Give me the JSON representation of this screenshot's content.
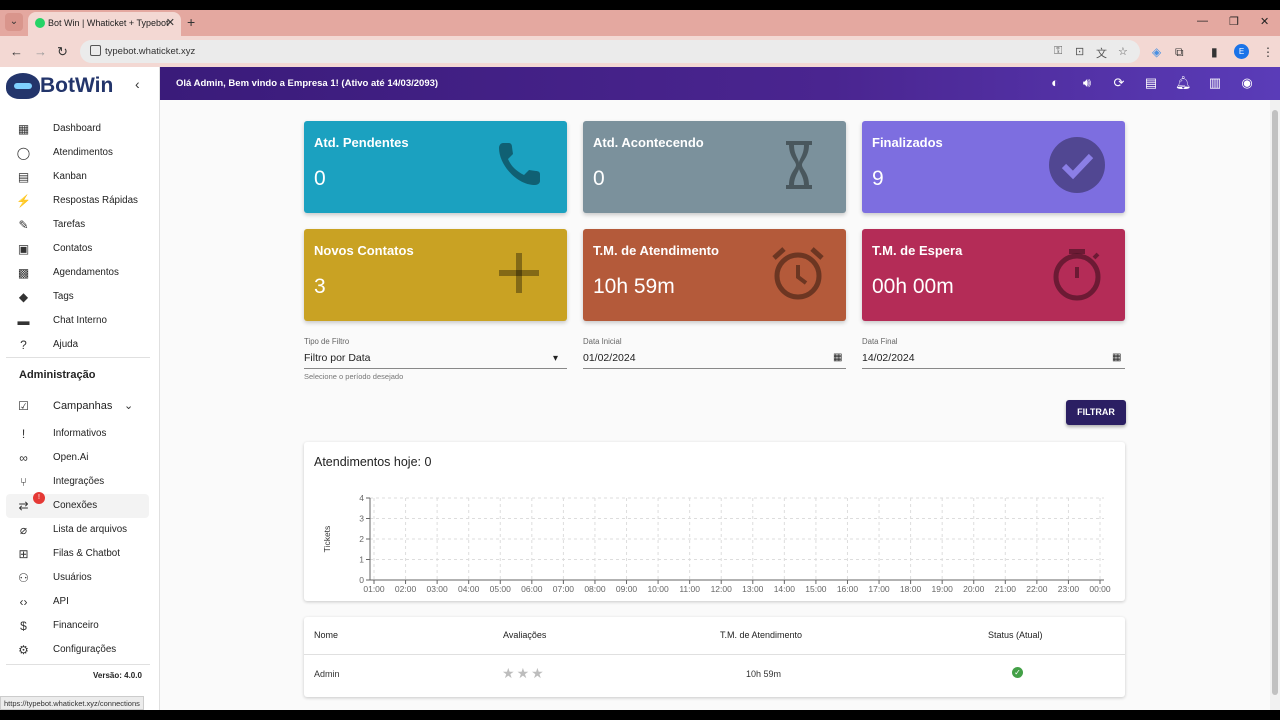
{
  "browser": {
    "tab_title": "Bot Win | Whaticket + Typebot",
    "url": "typebot.whaticket.xyz",
    "status_url": "https://typebot.whaticket.xyz/connections",
    "profile_initial": "E"
  },
  "header": {
    "greeting": "Olá Admin, Bem vindo a Empresa 1! (Ativo até 14/03/2093)",
    "icons": [
      "brightness-icon",
      "volume-icon",
      "refresh-icon",
      "chat-icon",
      "bell-icon",
      "forum-icon",
      "account-icon"
    ]
  },
  "sidebar": {
    "logo_text": "BotWin",
    "items": [
      {
        "label": "Dashboard",
        "icon": "dashboard-icon",
        "glyph": "▦"
      },
      {
        "label": "Atendimentos",
        "icon": "whatsapp-icon",
        "glyph": "◯"
      },
      {
        "label": "Kanban",
        "icon": "kanban-icon",
        "glyph": "▤"
      },
      {
        "label": "Respostas Rápidas",
        "icon": "flash-icon",
        "glyph": "⚡"
      },
      {
        "label": "Tarefas",
        "icon": "pencil-icon",
        "glyph": "✎"
      },
      {
        "label": "Contatos",
        "icon": "contacts-icon",
        "glyph": "▣"
      },
      {
        "label": "Agendamentos",
        "icon": "calendar-icon",
        "glyph": "▩"
      },
      {
        "label": "Tags",
        "icon": "tag-icon",
        "glyph": "◆"
      },
      {
        "label": "Chat Interno",
        "icon": "chat-icon",
        "glyph": "▬"
      },
      {
        "label": "Ajuda",
        "icon": "help-icon",
        "glyph": "?"
      }
    ],
    "admin_title": "Administração",
    "admin_items": [
      {
        "label": "Campanhas",
        "icon": "campaign-icon",
        "glyph": "☑"
      },
      {
        "label": "Informativos",
        "icon": "announcement-icon",
        "glyph": "!"
      },
      {
        "label": "Open.Ai",
        "icon": "infinity-icon",
        "glyph": "∞"
      },
      {
        "label": "Integrações",
        "icon": "integration-icon",
        "glyph": "⑂"
      },
      {
        "label": "Conexões",
        "icon": "sync-alt-icon",
        "glyph": "⇄",
        "badge": "!"
      },
      {
        "label": "Lista de arquivos",
        "icon": "attach-icon",
        "glyph": "⌀"
      },
      {
        "label": "Filas & Chatbot",
        "icon": "account-tree-icon",
        "glyph": "⊞"
      },
      {
        "label": "Usuários",
        "icon": "people-icon",
        "glyph": "⚇"
      },
      {
        "label": "API",
        "icon": "code-icon",
        "glyph": "‹›"
      },
      {
        "label": "Financeiro",
        "icon": "money-icon",
        "glyph": "$"
      },
      {
        "label": "Configurações",
        "icon": "settings-icon",
        "glyph": "⚙"
      }
    ],
    "version": "Versão: 4.0.0"
  },
  "cards": [
    {
      "title": "Atd. Pendentes",
      "value": "0",
      "color": "#1ba1c0",
      "icon": "phone-icon"
    },
    {
      "title": "Atd. Acontecendo",
      "value": "0",
      "color": "#7b919c",
      "icon": "hourglass-icon"
    },
    {
      "title": "Finalizados",
      "value": "9",
      "color": "#7d6ee0",
      "icon": "check-circle-icon"
    },
    {
      "title": "Novos Contatos",
      "value": "3",
      "color": "#c9a223",
      "icon": "add-icon"
    },
    {
      "title": "T.M. de Atendimento",
      "value": "10h 59m",
      "color": "#b45a3a",
      "icon": "alarm-icon"
    },
    {
      "title": "T.M. de Espera",
      "value": "00h 00m",
      "color": "#b42c57",
      "icon": "timer-icon"
    }
  ],
  "filters": {
    "type_label": "Tipo de Filtro",
    "type_value": "Filtro por Data",
    "type_helper": "Selecione o período desejado",
    "start_label": "Data Inicial",
    "start_value": "01/02/2024",
    "end_label": "Data Final",
    "end_value": "14/02/2024",
    "button_label": "FILTRAR"
  },
  "chart_data": {
    "type": "line",
    "title": "Atendimentos hoje: 0",
    "ylabel": "Tickets",
    "xlabel": "",
    "categories": [
      "01:00",
      "02:00",
      "03:00",
      "04:00",
      "05:00",
      "06:00",
      "07:00",
      "08:00",
      "09:00",
      "10:00",
      "11:00",
      "12:00",
      "13:00",
      "14:00",
      "15:00",
      "16:00",
      "17:00",
      "18:00",
      "19:00",
      "20:00",
      "21:00",
      "22:00",
      "23:00",
      "00:00"
    ],
    "values": [
      0,
      0,
      0,
      0,
      0,
      0,
      0,
      0,
      0,
      0,
      0,
      0,
      0,
      0,
      0,
      0,
      0,
      0,
      0,
      0,
      0,
      0,
      0,
      0
    ],
    "ylim": [
      0,
      4
    ],
    "yticks": [
      0,
      1,
      2,
      3,
      4
    ],
    "grid": true
  },
  "table": {
    "headers": [
      "Nome",
      "Avaliações",
      "T.M. de Atendimento",
      "Status (Atual)"
    ],
    "rows": [
      {
        "name": "Admin",
        "rating": 0,
        "rating_max": 3,
        "tm": "10h 59m",
        "status": "online"
      }
    ]
  },
  "colors": {
    "header_gradient_start": "#3a1b7a",
    "header_gradient_end": "#5a3cb8",
    "filter_button": "#2b1f63",
    "status_ok": "#43a047"
  }
}
